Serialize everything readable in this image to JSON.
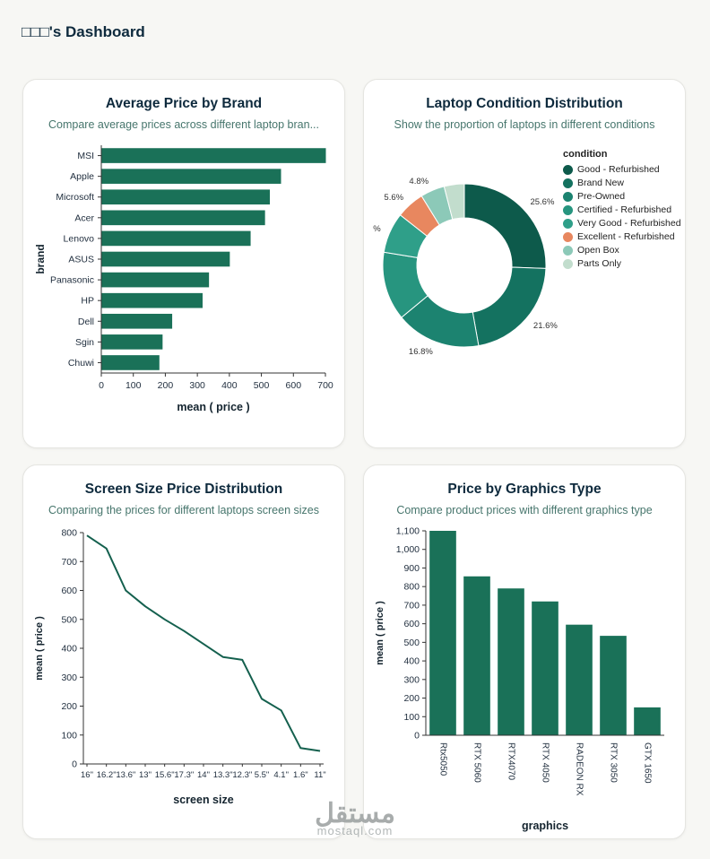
{
  "page": {
    "title": "□□□'s Dashboard",
    "watermark": {
      "line1": "مستقل",
      "line2": "mostaql.com"
    }
  },
  "colors": {
    "bar": "#1a7158",
    "line": "#14604e",
    "axis": "#333333",
    "tick_text": "#1f2d3d",
    "heading": "#0e2a3d",
    "subtitle": "#47766d"
  },
  "chart_data": [
    {
      "id": "avg-price-by-brand",
      "title": "Average Price by Brand",
      "subtitle": "Compare average prices across different laptop bran...",
      "type": "barh",
      "categories": [
        "MSI",
        "Apple",
        "Microsoft",
        "Acer",
        "Lenovo",
        "ASUS",
        "Panasonic",
        "HP",
        "Dell",
        "Sgin",
        "Chuwi"
      ],
      "values": [
        700,
        560,
        525,
        510,
        465,
        400,
        335,
        315,
        220,
        190,
        180
      ],
      "xlabel": "mean ( price )",
      "ylabel": "brand",
      "xlim": [
        0,
        700
      ],
      "xticks": [
        0,
        100,
        200,
        300,
        400,
        500,
        600,
        700
      ]
    },
    {
      "id": "laptop-condition-distribution",
      "title": "Laptop Condition Distribution",
      "subtitle": "Show the proportion of laptops in different conditions",
      "type": "donut",
      "legend_title": "condition",
      "labels": [
        "Good - Refurbished",
        "Brand New",
        "Pre-Owned",
        "Certified - Refurbished",
        "Very Good - Refurbished",
        "Excellent - Refurbished",
        "Open Box",
        "Parts Only"
      ],
      "values": [
        25.6,
        21.6,
        16.8,
        13.6,
        8.0,
        5.6,
        4.8,
        4.0
      ],
      "shown_labels": [
        "25.6%",
        "21.6%",
        "16.8%",
        "",
        "%",
        "5.6%",
        "4.8%",
        ""
      ],
      "colors": [
        "#0d5a4b",
        "#147260",
        "#1c8370",
        "#27957f",
        "#2f9f89",
        "#e8875f",
        "#8cc9b8",
        "#c2ddcd"
      ]
    },
    {
      "id": "screen-size-price-distribution",
      "title": "Screen Size Price Distribution",
      "subtitle": "Comparing the prices for different laptops screen sizes",
      "type": "line",
      "categories": [
        "16\"",
        "16.2\"",
        "13.6\"",
        "13\"",
        "15.6\"",
        "17.3\"",
        "14\"",
        "13.3\"",
        "12.3\"",
        "5.5\"",
        "4.1\"",
        "1.6\"",
        "11\""
      ],
      "values": [
        790,
        745,
        600,
        545,
        500,
        460,
        415,
        370,
        360,
        225,
        185,
        55,
        45
      ],
      "xlabel": "screen  size",
      "ylabel": "mean ( price )",
      "ylim": [
        0,
        800
      ],
      "yticks": [
        0,
        100,
        200,
        300,
        400,
        500,
        600,
        700,
        800
      ]
    },
    {
      "id": "price-by-graphics-type",
      "title": "Price by Graphics Type",
      "subtitle": "Compare product prices with different graphics type",
      "type": "bar",
      "categories": [
        "Rtx5050",
        "RTX 5060",
        "RTX4070",
        "RTX 4050",
        "RADEON RX",
        "RTX 3050",
        "GTX 1650"
      ],
      "values": [
        1100,
        855,
        790,
        720,
        595,
        535,
        150
      ],
      "xlabel": "graphics",
      "ylabel": "mean ( price )",
      "ylim": [
        0,
        1100
      ],
      "yticks": [
        0,
        100,
        200,
        300,
        400,
        500,
        600,
        700,
        800,
        900,
        1000,
        1100
      ]
    }
  ]
}
